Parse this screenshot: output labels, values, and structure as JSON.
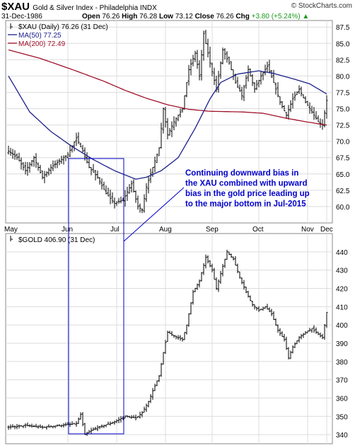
{
  "header": {
    "symbol": "$XAU",
    "description": "Gold & Silver Index - Philadelphia INDX",
    "watermark": "© StockCharts.com",
    "date": "31-Dec-1986",
    "open_label": "Open",
    "open": "76.26",
    "high_label": "High",
    "high": "76.28",
    "low_label": "Low",
    "low": "73.12",
    "close_label": "Close",
    "close": "76.26",
    "chg_label": "Chg",
    "chg": "+3.80 (+5.24%)",
    "chg_arrow": "▲"
  },
  "colors": {
    "ma50": "#1b1f8a",
    "ma200": "#a0102a",
    "annotation": "#0000cc",
    "grid": "#dcdcdc",
    "price": "#000000"
  },
  "chart_data": [
    {
      "type": "line",
      "name": "xau-panel",
      "legend": {
        "price": "$XAU (Daily) 76.26 (31 Dec)",
        "ma50": "MA(50) 77.25",
        "ma200": "MA(200) 72.49"
      },
      "ylim": [
        57.5,
        88.5
      ],
      "yticks": [
        "60.0",
        "62.5",
        "65.0",
        "67.5",
        "70.0",
        "72.5",
        "75.0",
        "77.5",
        "80.0",
        "82.5",
        "85.0",
        "87.5"
      ],
      "xticks": [
        "May",
        "Jun",
        "Jul",
        "Aug",
        "Sep",
        "Oct",
        "Nov",
        "Dec"
      ],
      "price_keypoints": [
        {
          "t": 0,
          "v": 68.5
        },
        {
          "t": 4,
          "v": 67.5
        },
        {
          "t": 8,
          "v": 65.5
        },
        {
          "t": 12,
          "v": 67.5
        },
        {
          "t": 16,
          "v": 64.5
        },
        {
          "t": 20,
          "v": 66
        },
        {
          "t": 24,
          "v": 67
        },
        {
          "t": 28,
          "v": 68
        },
        {
          "t": 32,
          "v": 70.5
        },
        {
          "t": 35,
          "v": 68.5
        },
        {
          "t": 38,
          "v": 66
        },
        {
          "t": 42,
          "v": 64.5
        },
        {
          "t": 46,
          "v": 62
        },
        {
          "t": 50,
          "v": 60.5
        },
        {
          "t": 54,
          "v": 61
        },
        {
          "t": 58,
          "v": 63.5
        },
        {
          "t": 61,
          "v": 60
        },
        {
          "t": 63,
          "v": 59.5
        },
        {
          "t": 65,
          "v": 63
        },
        {
          "t": 68,
          "v": 66
        },
        {
          "t": 71,
          "v": 69
        },
        {
          "t": 73,
          "v": 75
        },
        {
          "t": 75,
          "v": 71
        },
        {
          "t": 78,
          "v": 73
        },
        {
          "t": 82,
          "v": 75
        },
        {
          "t": 85,
          "v": 81
        },
        {
          "t": 88,
          "v": 83.5
        },
        {
          "t": 90,
          "v": 80
        },
        {
          "t": 92,
          "v": 86.5
        },
        {
          "t": 95,
          "v": 82
        },
        {
          "t": 98,
          "v": 78
        },
        {
          "t": 101,
          "v": 84
        },
        {
          "t": 104,
          "v": 82
        },
        {
          "t": 107,
          "v": 79
        },
        {
          "t": 110,
          "v": 77
        },
        {
          "t": 113,
          "v": 81
        },
        {
          "t": 116,
          "v": 78
        },
        {
          "t": 119,
          "v": 80
        },
        {
          "t": 122,
          "v": 81.5
        },
        {
          "t": 125,
          "v": 79
        },
        {
          "t": 128,
          "v": 76
        },
        {
          "t": 131,
          "v": 74
        },
        {
          "t": 134,
          "v": 76.5
        },
        {
          "t": 137,
          "v": 78
        },
        {
          "t": 140,
          "v": 76
        },
        {
          "t": 143,
          "v": 74.5
        },
        {
          "t": 146,
          "v": 73
        },
        {
          "t": 148,
          "v": 72.5
        },
        {
          "t": 150,
          "v": 76.26
        }
      ],
      "ma50_keypoints": [
        {
          "t": 0,
          "v": 80
        },
        {
          "t": 10,
          "v": 74.5
        },
        {
          "t": 20,
          "v": 71.5
        },
        {
          "t": 30,
          "v": 69.2
        },
        {
          "t": 40,
          "v": 67.2
        },
        {
          "t": 50,
          "v": 65.5
        },
        {
          "t": 60,
          "v": 64.2
        },
        {
          "t": 65,
          "v": 64.5
        },
        {
          "t": 72,
          "v": 65.5
        },
        {
          "t": 80,
          "v": 67.5
        },
        {
          "t": 88,
          "v": 72
        },
        {
          "t": 95,
          "v": 76.5
        },
        {
          "t": 100,
          "v": 79
        },
        {
          "t": 108,
          "v": 80.3
        },
        {
          "t": 118,
          "v": 80.8
        },
        {
          "t": 125,
          "v": 80.4
        },
        {
          "t": 135,
          "v": 79.5
        },
        {
          "t": 142,
          "v": 78.8
        },
        {
          "t": 150,
          "v": 77.25
        }
      ],
      "ma200_keypoints": [
        {
          "t": 0,
          "v": 84
        },
        {
          "t": 15,
          "v": 82.7
        },
        {
          "t": 30,
          "v": 81
        },
        {
          "t": 45,
          "v": 79.2
        },
        {
          "t": 55,
          "v": 77.8
        },
        {
          "t": 65,
          "v": 76.6
        },
        {
          "t": 75,
          "v": 75.6
        },
        {
          "t": 85,
          "v": 74.9
        },
        {
          "t": 95,
          "v": 74.6
        },
        {
          "t": 110,
          "v": 74.5
        },
        {
          "t": 120,
          "v": 74.3
        },
        {
          "t": 130,
          "v": 73.6
        },
        {
          "t": 140,
          "v": 73
        },
        {
          "t": 150,
          "v": 72.49
        }
      ]
    },
    {
      "type": "line",
      "name": "gold-panel",
      "legend": {
        "price": "$GOLD 406.90 (31 Dec)"
      },
      "ylim": [
        335,
        450
      ],
      "yticks": [
        "340",
        "350",
        "360",
        "370",
        "380",
        "390",
        "400",
        "410",
        "420",
        "430",
        "440"
      ],
      "xticks": [
        "May",
        "Jun",
        "Jul",
        "Aug",
        "Sep",
        "Oct",
        "Nov",
        "Dec"
      ],
      "price_keypoints": [
        {
          "t": 0,
          "v": 344
        },
        {
          "t": 8,
          "v": 345
        },
        {
          "t": 16,
          "v": 344
        },
        {
          "t": 24,
          "v": 345
        },
        {
          "t": 32,
          "v": 346
        },
        {
          "t": 34,
          "v": 351
        },
        {
          "t": 36,
          "v": 340
        },
        {
          "t": 40,
          "v": 343
        },
        {
          "t": 45,
          "v": 345
        },
        {
          "t": 50,
          "v": 347
        },
        {
          "t": 55,
          "v": 350
        },
        {
          "t": 60,
          "v": 349
        },
        {
          "t": 63,
          "v": 352
        },
        {
          "t": 66,
          "v": 358
        },
        {
          "t": 68,
          "v": 364
        },
        {
          "t": 71,
          "v": 372
        },
        {
          "t": 73,
          "v": 385
        },
        {
          "t": 75,
          "v": 396
        },
        {
          "t": 78,
          "v": 394
        },
        {
          "t": 82,
          "v": 392
        },
        {
          "t": 84,
          "v": 400
        },
        {
          "t": 87,
          "v": 418
        },
        {
          "t": 90,
          "v": 424
        },
        {
          "t": 93,
          "v": 437
        },
        {
          "t": 96,
          "v": 430
        },
        {
          "t": 98,
          "v": 420
        },
        {
          "t": 100,
          "v": 428
        },
        {
          "t": 103,
          "v": 440
        },
        {
          "t": 106,
          "v": 436
        },
        {
          "t": 109,
          "v": 426
        },
        {
          "t": 112,
          "v": 418
        },
        {
          "t": 115,
          "v": 411
        },
        {
          "t": 118,
          "v": 408
        },
        {
          "t": 121,
          "v": 410
        },
        {
          "t": 124,
          "v": 406
        },
        {
          "t": 127,
          "v": 397
        },
        {
          "t": 130,
          "v": 392
        },
        {
          "t": 132,
          "v": 382
        },
        {
          "t": 134,
          "v": 388
        },
        {
          "t": 137,
          "v": 393
        },
        {
          "t": 140,
          "v": 396
        },
        {
          "t": 143,
          "v": 398
        },
        {
          "t": 146,
          "v": 395
        },
        {
          "t": 148,
          "v": 393
        },
        {
          "t": 150,
          "v": 406.9
        }
      ]
    }
  ],
  "annotation": {
    "lines": [
      "Continuing downward bias in",
      "the XAU combined with upward",
      "bias in the gold price leading up",
      "to the major bottom in Jul-2015"
    ]
  }
}
